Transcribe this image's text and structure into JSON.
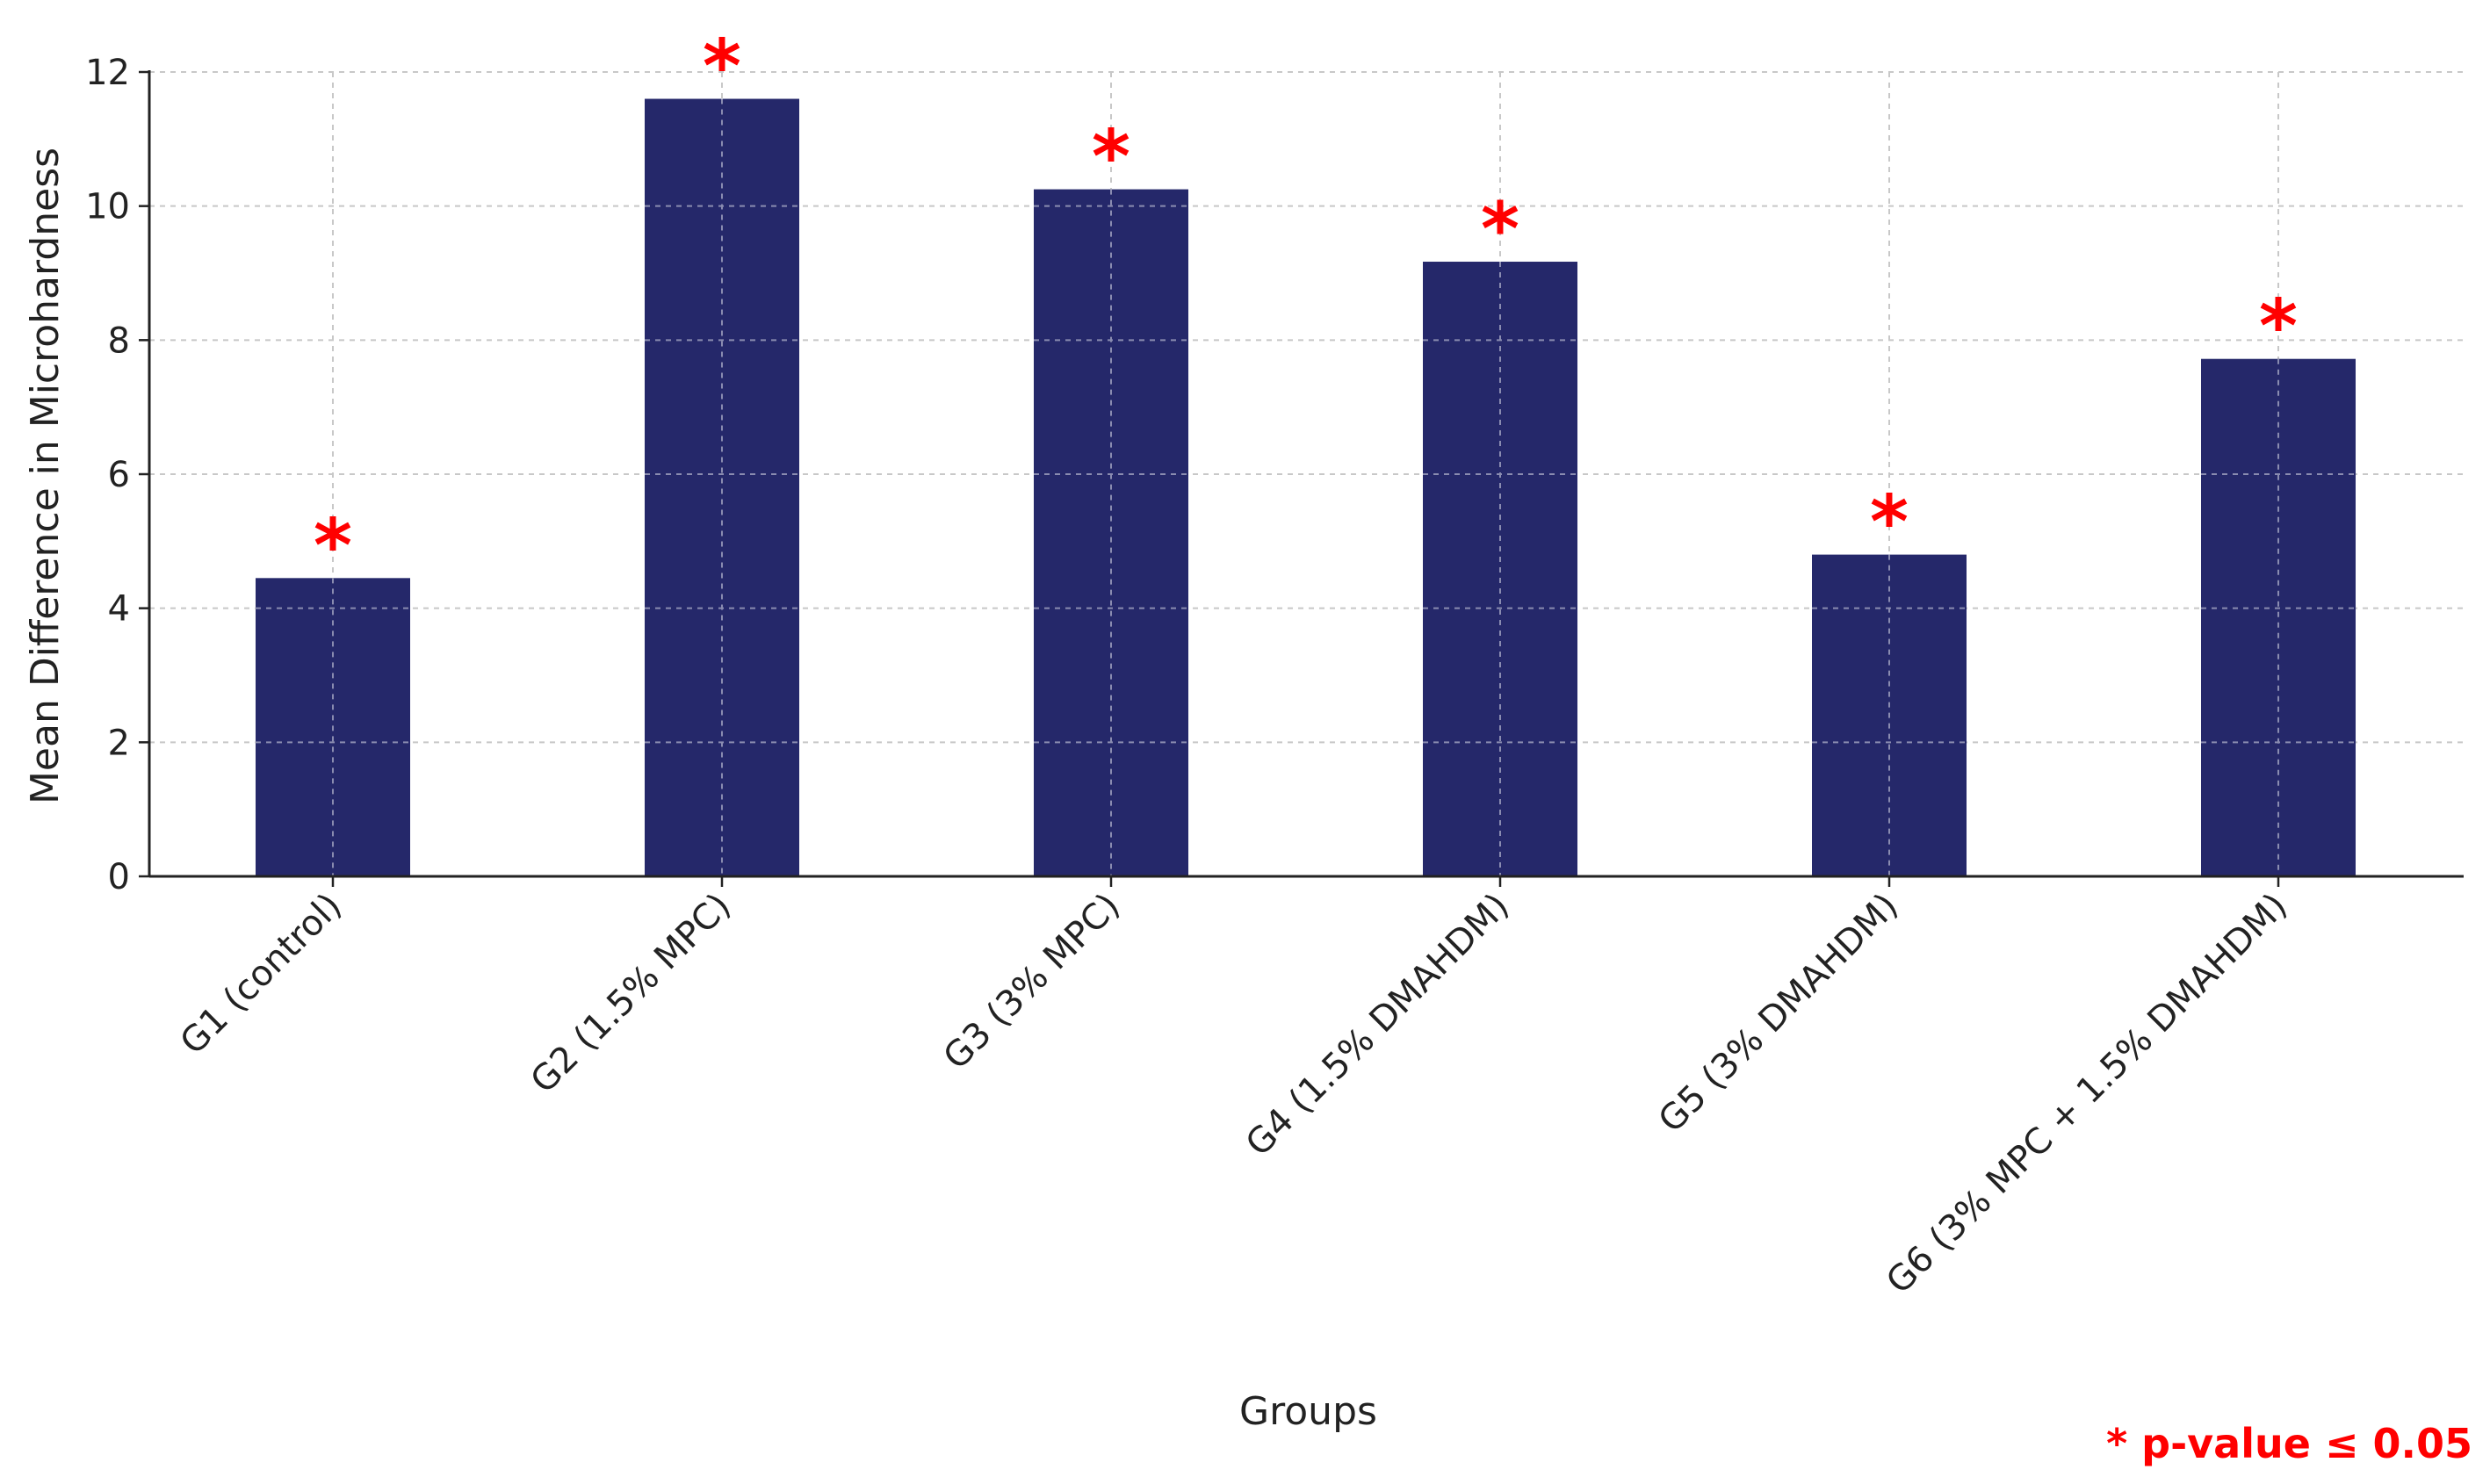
{
  "chart_data": {
    "type": "bar",
    "title": "",
    "xlabel": "Groups",
    "ylabel": "Mean Difference in Microhardness",
    "categories": [
      "G1 (control)",
      "G2 (1.5% MPC)",
      "G3 (3% MPC)",
      "G4 (1.5% DMAHDM)",
      "G5 (3% DMAHDM)",
      "G6 (3% MPC + 1.5% DMAHDM)"
    ],
    "values": [
      4.45,
      11.6,
      10.25,
      9.17,
      4.8,
      7.72
    ],
    "significance_markers": [
      "*",
      "*",
      "*",
      "*",
      "*",
      "*"
    ],
    "ylim": [
      0,
      12
    ],
    "yticks": [
      "0",
      "2",
      "4",
      "6",
      "8",
      "10",
      "12"
    ],
    "grid": true,
    "footnote": "* p-value ≤ 0.05",
    "colors": {
      "bar": "#25286a",
      "marker": "#ff0000",
      "grid": "#c8c8c8",
      "axis": "#222222"
    }
  }
}
